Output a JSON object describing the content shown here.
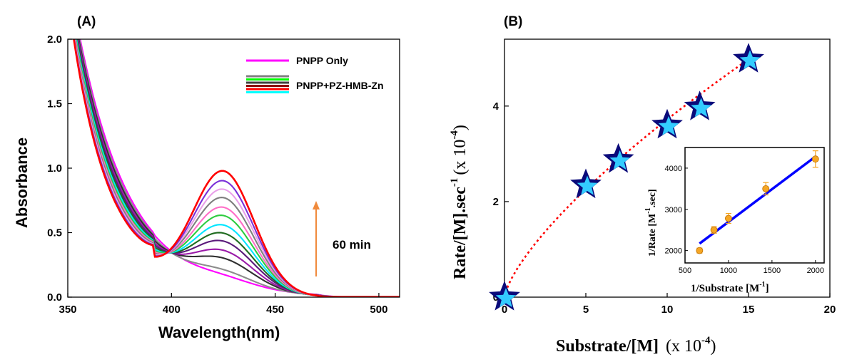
{
  "chart_data": [
    {
      "type": "line",
      "panel_label": "(A)",
      "xlabel": "Wavelength(nm)",
      "ylabel": "Absorbance",
      "xlim": [
        350,
        510
      ],
      "ylim": [
        0,
        2.0
      ],
      "xticks": [
        "350",
        "400",
        "450",
        "500"
      ],
      "yticks": [
        "0.0",
        "0.5",
        "1.0",
        "1.5",
        "2.0"
      ],
      "legend": [
        {
          "label": "PNPP Only",
          "colors": [
            "#ff00ff"
          ]
        },
        {
          "label": "PNPP+PZ-HMB-Zn",
          "colors": [
            "#808080",
            "#00ff00",
            "#404040",
            "#8b0000",
            "#ff0000",
            "#00ffff"
          ]
        }
      ],
      "annotation": {
        "text": "60 min",
        "arrow_color": "#f08a3c"
      },
      "peak_wavelength": 425,
      "series": [
        {
          "color": "#ff00ff",
          "peak": 0.05,
          "min": 0.05
        },
        {
          "color": "#8c8c8c",
          "peak": 0.1,
          "min": 0.1
        },
        {
          "color": "#2f2f2f",
          "peak": 0.2,
          "min": 0.16
        },
        {
          "color": "#9a1aa8",
          "peak": 0.27,
          "min": 0.2
        },
        {
          "color": "#5a1a7a",
          "peak": 0.35,
          "min": 0.24
        },
        {
          "color": "#1f6b1f",
          "peak": 0.42,
          "min": 0.28
        },
        {
          "color": "#00e5ff",
          "peak": 0.49,
          "min": 0.31
        },
        {
          "color": "#2ecc40",
          "peak": 0.57,
          "min": 0.34
        },
        {
          "color": "#ff6ec7",
          "peak": 0.64,
          "min": 0.37
        },
        {
          "color": "#7f7f7f",
          "peak": 0.72,
          "min": 0.39
        },
        {
          "color": "#e9a0e9",
          "peak": 0.79,
          "min": 0.41
        },
        {
          "color": "#7a2fd8",
          "peak": 0.86,
          "min": 0.43
        },
        {
          "color": "#ff0000",
          "peak": 0.94,
          "min": 0.45
        }
      ]
    },
    {
      "type": "scatter",
      "panel_label": "(B)",
      "xlabel_main": "Substrate/[M]",
      "xlabel_scale": "(x 10",
      "xlabel_exp": "-4",
      "xlabel_close": ")",
      "ylabel_main": "Rate/[M].sec",
      "ylabel_exp1": "-1",
      "ylabel_scale": "(x 10",
      "ylabel_exp2": "-4",
      "ylabel_close": ")",
      "xlim": [
        0,
        20
      ],
      "ylim": [
        0,
        5.4
      ],
      "xticks": [
        "0",
        "5",
        "10",
        "15",
        "20"
      ],
      "yticks": [
        "0",
        "2",
        "4"
      ],
      "x": [
        0,
        5,
        7,
        10,
        12,
        15
      ],
      "y": [
        0,
        2.35,
        2.88,
        3.6,
        3.98,
        4.98
      ],
      "fit_color": "#ff0000",
      "marker_colors": [
        "#0a0a7a",
        "#33ccff"
      ],
      "inset": {
        "type": "scatter",
        "xlabel_main": "1/Substrate [M",
        "xlabel_exp": "-1",
        "xlabel_close": "]",
        "ylabel_main": "1/Rate [M",
        "ylabel_exp": "-1",
        "ylabel_close": ".sec]",
        "xlim": [
          500,
          2100
        ],
        "ylim": [
          1700,
          4500
        ],
        "xticks": [
          "500",
          "1000",
          "1500",
          "2000"
        ],
        "yticks": [
          "2000",
          "3000",
          "4000"
        ],
        "x": [
          667,
          833,
          1000,
          1429,
          2000
        ],
        "y": [
          2000,
          2500,
          2780,
          3500,
          4220
        ],
        "err": [
          60,
          80,
          120,
          150,
          200
        ],
        "fit": [
          [
            667,
            2170
          ],
          [
            2000,
            4280
          ]
        ],
        "point_color": "#f5a623",
        "fit_color": "#0000ff"
      }
    }
  ]
}
